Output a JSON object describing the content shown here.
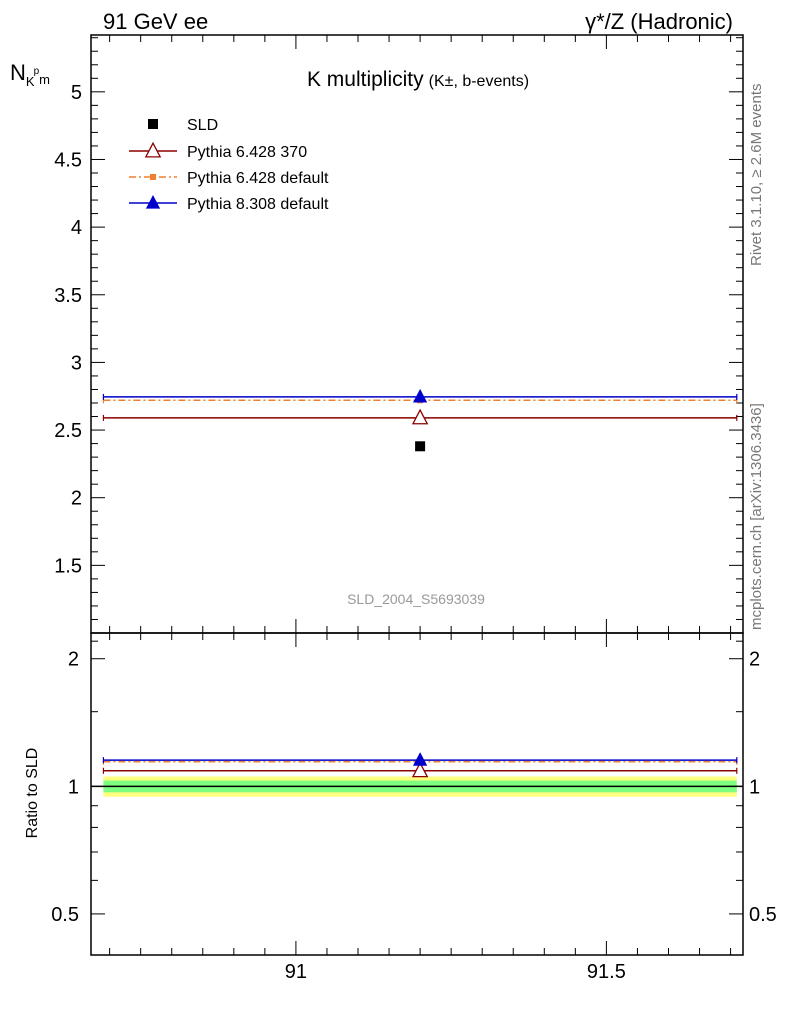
{
  "header": {
    "left_label": "91 GeV ee",
    "right_label": "γ*/Z (Hadronic)"
  },
  "side_notes": {
    "rivet": "Rivet 3.1.10, ≥ 2.6M events",
    "mcplots": "mcplots.cern.ch [arXiv:1306.3436]"
  },
  "watermark": "SLD_2004_S5693039",
  "colors": {
    "data": "#000000",
    "pythia6_370": "#8b0000",
    "pythia6_default": "#f08030",
    "pythia8_default": "#0000cc",
    "band_inner": "#7fff7f",
    "band_outer": "#ffff7f"
  },
  "chart_data": [
    {
      "type": "scatter",
      "panel": "main",
      "title": "K multiplicity",
      "title_suffix": "(K±, b-events)",
      "ylabel_main": "N",
      "ylabel_sub": "K",
      "ylabel_sup": "p",
      "ylabel_sub2": "m",
      "xlim": [
        90.67,
        91.72
      ],
      "ylim": [
        1.0,
        5.42
      ],
      "yticks": [
        1.5,
        2,
        2.5,
        3,
        3.5,
        4,
        4.5,
        5
      ],
      "ytick_labels": [
        "1.5",
        "2",
        "2.5",
        "3",
        "3.5",
        "4",
        "4.5",
        "5"
      ],
      "legend_position": "top-left",
      "series": [
        {
          "name": "SLD",
          "style": "data-square",
          "x": [
            91.2
          ],
          "y": [
            2.38
          ]
        },
        {
          "name": "Pythia 6.428 370",
          "style": "open-triangle-solid",
          "x": [
            91.2
          ],
          "y": [
            2.59
          ],
          "x_range": [
            90.69,
            91.71
          ]
        },
        {
          "name": "Pythia 6.428 default",
          "style": "square-dashdot",
          "x": [
            91.2
          ],
          "y": [
            2.72
          ],
          "x_range": [
            90.69,
            91.71
          ]
        },
        {
          "name": "Pythia 8.308 default",
          "style": "triangle-solid",
          "x": [
            91.2
          ],
          "y": [
            2.745
          ],
          "x_range": [
            90.69,
            91.71
          ]
        }
      ]
    },
    {
      "type": "scatter",
      "panel": "ratio",
      "ylabel": "Ratio to SLD",
      "xlim": [
        90.67,
        91.72
      ],
      "ylim": [
        0.4,
        2.3
      ],
      "scale": "log",
      "yticks": [
        0.5,
        1,
        2
      ],
      "ytick_labels": [
        "0.5",
        "1",
        "2"
      ],
      "xticks": [
        91,
        91.5
      ],
      "xtick_labels": [
        "91",
        "91.5"
      ],
      "band": {
        "inner": [
          0.968,
          1.032
        ],
        "outer": [
          0.945,
          1.055
        ],
        "x_range": [
          90.69,
          91.71
        ]
      },
      "series": [
        {
          "name": "Pythia 6.428 370",
          "x": [
            91.2
          ],
          "y": [
            1.088
          ]
        },
        {
          "name": "Pythia 6.428 default",
          "x": [
            91.2
          ],
          "y": [
            1.143
          ]
        },
        {
          "name": "Pythia 8.308 default",
          "x": [
            91.2
          ],
          "y": [
            1.153
          ]
        }
      ]
    }
  ]
}
